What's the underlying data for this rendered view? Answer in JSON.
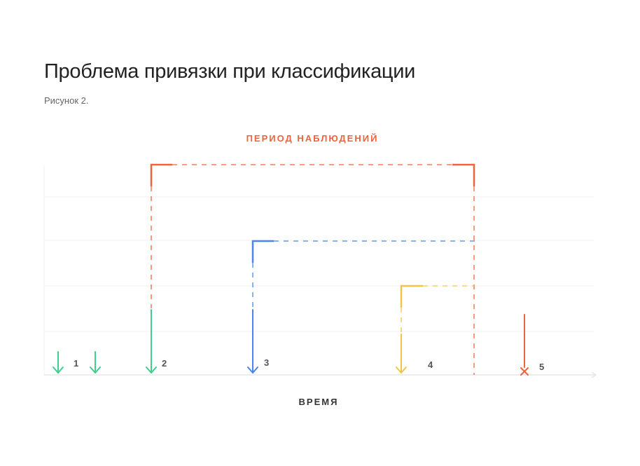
{
  "header": {
    "title": "Проблема привязки при классификации",
    "caption": "Рисунок 2."
  },
  "diagram": {
    "period_label": "ПЕРИОД НАБЛЮДЕНИЙ",
    "time_label": "ВРЕМЯ",
    "events": [
      {
        "label": "1",
        "color": "#3ecf8e"
      },
      {
        "label": "2",
        "color": "#3ecf8e"
      },
      {
        "label": "3",
        "color": "#4a86e8"
      },
      {
        "label": "4",
        "color": "#f4c542"
      },
      {
        "label": "5",
        "color": "#f0623a"
      }
    ],
    "colors": {
      "period": "#f0623a",
      "green": "#3ecf8e",
      "blue": "#4a86e8",
      "yellow": "#f4c542",
      "red": "#f0623a",
      "grid": "#f0f0f0",
      "axis": "#e6e6e6"
    }
  }
}
